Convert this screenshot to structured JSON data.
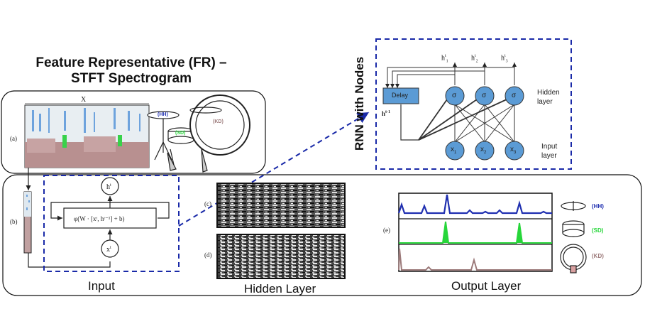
{
  "header": {
    "title_line1": "Feature Representative (FR) –",
    "title_line2": "STFT Spectrogram"
  },
  "top_panel": {
    "x_label": "X",
    "a_label": "(a)",
    "drum_labels": {
      "hh": "(HH)",
      "sd": "(SD)",
      "kd": "(KD)"
    }
  },
  "rnn": {
    "vertical_title": "RNN with Nodes",
    "delay_label": "Delay",
    "h_prev": "h",
    "h_prev_sup": "t-1",
    "hidden_nodes": [
      "σ",
      "σ",
      "σ"
    ],
    "outputs": [
      "h",
      "h",
      "h"
    ],
    "output_subs": [
      "1",
      "2",
      "3"
    ],
    "output_sup": "t",
    "inputs": [
      "x",
      "x",
      "x"
    ],
    "input_subs": [
      "1",
      "2",
      "3"
    ],
    "hidden_layer_label": [
      "Hidden",
      "layer"
    ],
    "input_layer_label": [
      "Input",
      "layer"
    ]
  },
  "cell": {
    "b_label": "(b)",
    "h_node": "h",
    "h_sup": "t",
    "x_node": "x",
    "x_sup": "t",
    "formula": "φ(W · [xᵗ, hᵗ⁻¹] + b)"
  },
  "hidden": {
    "c_label": "(c)",
    "d_label": "(d)"
  },
  "output": {
    "e_label": "(e)",
    "legend": [
      {
        "label": "(HH)",
        "color": "#1f2fb0"
      },
      {
        "label": "(SD)",
        "color": "#27d63a"
      },
      {
        "label": "(KD)",
        "color": "#9c7a7a"
      }
    ]
  },
  "section_labels": {
    "input": "Input",
    "hidden": "Hidden Layer",
    "output": "Output Layer"
  },
  "colors": {
    "dashed_blue": "#1a2aa8",
    "node_blue": "#5b9bd5",
    "hh_blue": "#1f2fb0",
    "sd_green": "#27d63a",
    "kd_brown": "#9c7a7a"
  }
}
